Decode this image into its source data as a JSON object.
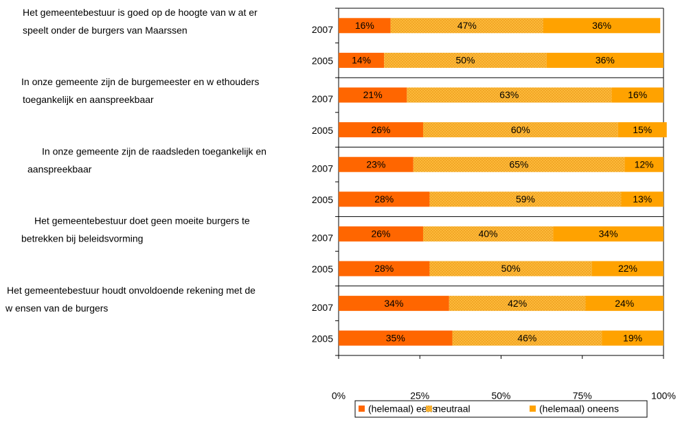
{
  "chart_data": {
    "type": "stacked_bar_h",
    "group_labels": [
      [
        "Het gemeentebestuur is goed op de hoogte van w at er",
        "speelt onder de burgers van Maarssen"
      ],
      [
        "In onze gemeente zijn de burgemeester en w ethouders",
        "toegankelijk en aanspreekbaar"
      ],
      [
        "In onze gemeente zijn de raadsleden toegankelijk en",
        "aanspreekbaar"
      ],
      [
        "Het gemeentebestuur doet geen moeite burgers te",
        "betrekken bij beleidsvorming"
      ],
      [
        "Het gemeentebestuur houdt onvoldoende rekening met de",
        "w ensen van de burgers"
      ]
    ],
    "categories": [
      "2007",
      "2005",
      "2007",
      "2005",
      "2007",
      "2005",
      "2007",
      "2005",
      "2007",
      "2005"
    ],
    "series": [
      {
        "name": "(helemaal) eens",
        "color": "#ff6600",
        "values": [
          16,
          14,
          21,
          26,
          23,
          28,
          26,
          28,
          34,
          35
        ],
        "value_labels": [
          "16%",
          "14%",
          "21%",
          "26%",
          "23%",
          "28%",
          "26%",
          "28%",
          "34%",
          "35%"
        ]
      },
      {
        "name": "neutraal",
        "color": "#ffc040",
        "values": [
          47,
          50,
          63,
          60,
          65,
          59,
          40,
          50,
          42,
          46
        ],
        "value_labels": [
          "47%",
          "50%",
          "63%",
          "60%",
          "65%",
          "59%",
          "40%",
          "50%",
          "42%",
          "46%"
        ]
      },
      {
        "name": "(helemaal) oneens",
        "color": "#ffa200",
        "values": [
          36,
          36,
          16,
          15,
          12,
          13,
          34,
          22,
          24,
          19
        ],
        "value_labels": [
          "36%",
          "36%",
          "16%",
          "15%",
          "12%",
          "13%",
          "34%",
          "22%",
          "24%",
          "19%"
        ]
      }
    ],
    "xlim": [
      0,
      100
    ],
    "xticks": [
      {
        "value": 0,
        "label": "0%"
      },
      {
        "value": 25,
        "label": "25%"
      },
      {
        "value": 50,
        "label": "50%"
      },
      {
        "value": 75,
        "label": "75%"
      },
      {
        "value": 100,
        "label": "100%"
      }
    ],
    "legend": "bottom"
  }
}
